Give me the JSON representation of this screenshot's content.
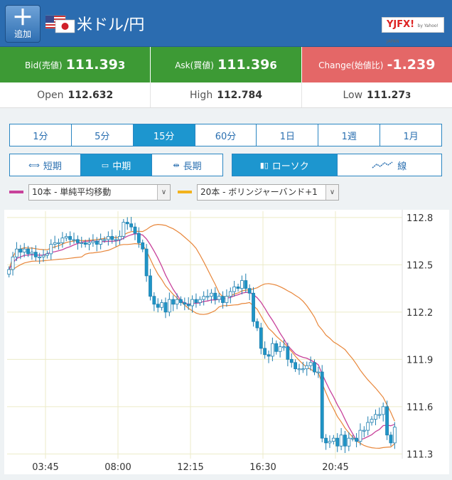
{
  "header": {
    "add_label": "追加",
    "pair_title": "米ドル/円",
    "logo_text": "YJFX!",
    "logo_sub": "by Yahoo! JAPAN"
  },
  "quotes": {
    "bid_label": "Bid(売値)",
    "bid_main": "111.39",
    "bid_small": "3",
    "ask_label": "Ask(買値)",
    "ask_main": "111.39",
    "ask_small": "6",
    "change_label": "Change(始値比)",
    "change_value": "-1.239"
  },
  "ohl": {
    "open_label": "Open",
    "open_value": "112.632",
    "high_label": "High",
    "high_value": "112.784",
    "low_label": "Low",
    "low_main": "111.27",
    "low_small": "3"
  },
  "periods": [
    "1分",
    "5分",
    "15分",
    "60分",
    "1日",
    "1週",
    "1月"
  ],
  "active_period": "15分",
  "terms": [
    "短期",
    "中期",
    "長期"
  ],
  "active_term": "中期",
  "chart_types": [
    "ローソク",
    "線"
  ],
  "active_chart_type": "ローソク",
  "indicators": {
    "ind1_label": "10本 - 単純平均移動",
    "ind1_color": "#c8429b",
    "ind2_label": "20本 - ボリンジャーバンド+1",
    "ind2_color": "#f2b21c"
  },
  "chart_data": {
    "type": "candlestick",
    "y_ticks": [
      "112.8",
      "112.5",
      "112.2",
      "111.9",
      "111.6",
      "111.3"
    ],
    "x_ticks": [
      "03:45",
      "08:00",
      "12:15",
      "16:30",
      "20:45"
    ],
    "ylim": [
      111.27,
      112.84
    ],
    "up_color": "#ffffff",
    "down_color": "#1f95c6",
    "close": [
      112.47,
      112.55,
      112.6,
      112.58,
      112.6,
      112.57,
      112.58,
      112.55,
      112.55,
      112.56,
      112.57,
      112.63,
      112.64,
      112.64,
      112.67,
      112.68,
      112.66,
      112.66,
      112.64,
      112.64,
      112.63,
      112.64,
      112.65,
      112.63,
      112.66,
      112.66,
      112.68,
      112.66,
      112.66,
      112.68,
      112.77,
      112.76,
      112.74,
      112.7,
      112.64,
      112.6,
      112.43,
      112.3,
      112.25,
      112.23,
      112.26,
      112.2,
      112.28,
      112.25,
      112.28,
      112.26,
      112.25,
      112.24,
      112.28,
      112.26,
      112.28,
      112.3,
      112.3,
      112.32,
      112.28,
      112.3,
      112.26,
      112.3,
      112.33,
      112.36,
      112.35,
      112.4,
      112.35,
      112.32,
      112.14,
      112.1,
      111.97,
      111.93,
      111.92,
      112.0,
      111.95,
      111.98,
      111.98,
      111.9,
      111.88,
      111.84,
      111.84,
      111.84,
      111.86,
      111.88,
      111.82,
      111.82,
      111.4,
      111.37,
      111.38,
      111.4,
      111.35,
      111.42,
      111.35,
      111.4,
      111.4,
      111.38,
      111.45,
      111.45,
      111.5,
      111.52,
      111.55,
      111.55,
      111.6,
      111.42,
      111.37,
      111.47
    ]
  }
}
